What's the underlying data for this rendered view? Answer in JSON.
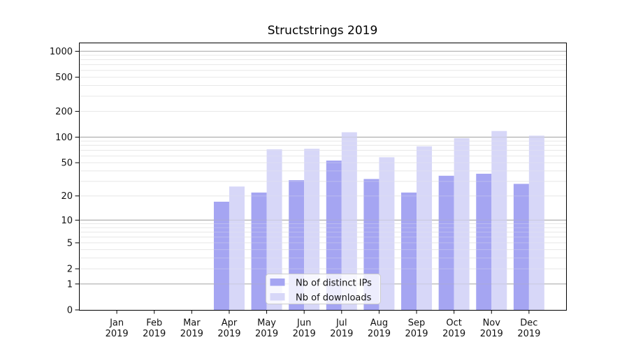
{
  "figure": {
    "title": "Structstrings 2019"
  },
  "chart_data": {
    "type": "bar",
    "title": "Structstrings 2019",
    "x": {
      "months": [
        "Jan",
        "Feb",
        "Mar",
        "Apr",
        "May",
        "Jun",
        "Jul",
        "Aug",
        "Sep",
        "Oct",
        "Nov",
        "Dec"
      ],
      "year": "2019"
    },
    "y_ticks": [
      0,
      1,
      2,
      5,
      10,
      20,
      50,
      100,
      200,
      500,
      1000
    ],
    "y_scale": "log10(1+value)",
    "ylim": [
      0,
      1250
    ],
    "grid": {
      "major_at": [
        1,
        10,
        100,
        1000
      ],
      "minor_per_decade": [
        2,
        3,
        4,
        5,
        6,
        7,
        8,
        9
      ]
    },
    "legend": {
      "position": "inside-bottom-center",
      "entries": [
        "Nb of distinct IPs",
        "Nb of downloads"
      ]
    },
    "series": [
      {
        "name": "Nb of distinct IPs",
        "color": "#a5a5f2",
        "values": [
          0,
          0,
          0,
          17,
          22,
          31,
          53,
          32,
          22,
          35,
          37,
          28
        ]
      },
      {
        "name": "Nb of downloads",
        "color": "#d7d7f8",
        "values": [
          0,
          0,
          0,
          26,
          72,
          73,
          114,
          58,
          78,
          97,
          118,
          104
        ]
      }
    ]
  },
  "colors": {
    "background": "#ffffff",
    "axis": "#000000",
    "text": "#111111",
    "grid_major": "#b2b2b2",
    "grid_minor": "#e8e8e8",
    "legend_border": "#cccccc",
    "legend_fill": "#ffffff"
  }
}
